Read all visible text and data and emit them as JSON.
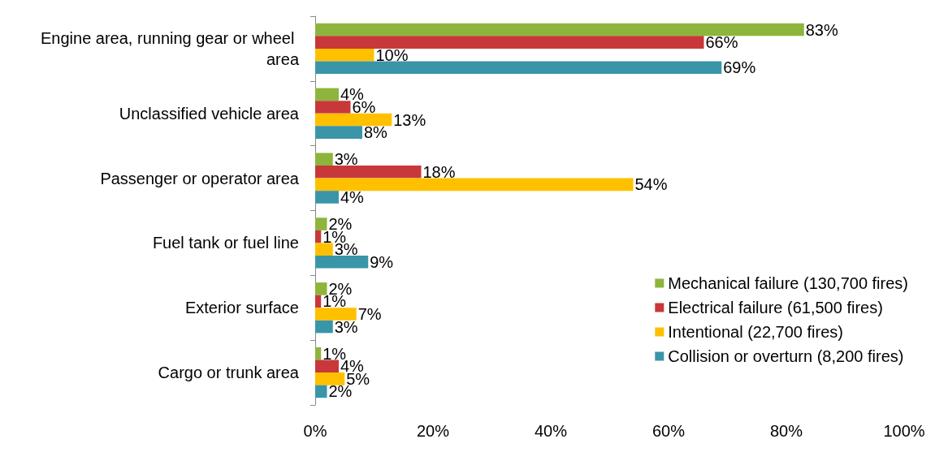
{
  "chart_data": {
    "type": "bar",
    "orientation": "horizontal",
    "categories": [
      "Engine area, running gear or wheel area",
      "Unclassified vehicle area",
      "Passenger or operator area",
      "Fuel tank or fuel line",
      "Exterior surface",
      "Cargo or trunk area"
    ],
    "series": [
      {
        "name": "Mechanical failure (130,700 fires)",
        "color": "#8db53c",
        "values": [
          83,
          4,
          3,
          2,
          2,
          1
        ],
        "value_labels": [
          "83%",
          "4%",
          "3%",
          "2%",
          "2%",
          "1%"
        ]
      },
      {
        "name": "Electrical failure (61,500 fires)",
        "color": "#c8383a",
        "values": [
          66,
          6,
          18,
          1,
          1,
          4
        ],
        "value_labels": [
          "66%",
          "6%",
          "18%",
          "1%",
          "1%",
          "4%"
        ]
      },
      {
        "name": "Intentional (22,700 fires)",
        "color": "#ffc000",
        "values": [
          10,
          13,
          54,
          3,
          7,
          5
        ],
        "value_labels": [
          "10%",
          "13%",
          "54%",
          "3%",
          "7%",
          "5%"
        ]
      },
      {
        "name": "Collision or overturn (8,200 fires)",
        "color": "#3a95a8",
        "values": [
          69,
          8,
          4,
          9,
          3,
          2
        ],
        "value_labels": [
          "69%",
          "8%",
          "4%",
          "9%",
          "3%",
          "2%"
        ]
      }
    ],
    "xlim": [
      0,
      100
    ],
    "xticks": [
      {
        "value": 0,
        "label": "0%"
      },
      {
        "value": 20,
        "label": "20%"
      },
      {
        "value": 40,
        "label": "40%"
      },
      {
        "value": 60,
        "label": "60%"
      },
      {
        "value": 80,
        "label": "80%"
      },
      {
        "value": 100,
        "label": "100%"
      }
    ],
    "grid": false,
    "legend": "bottom right"
  }
}
